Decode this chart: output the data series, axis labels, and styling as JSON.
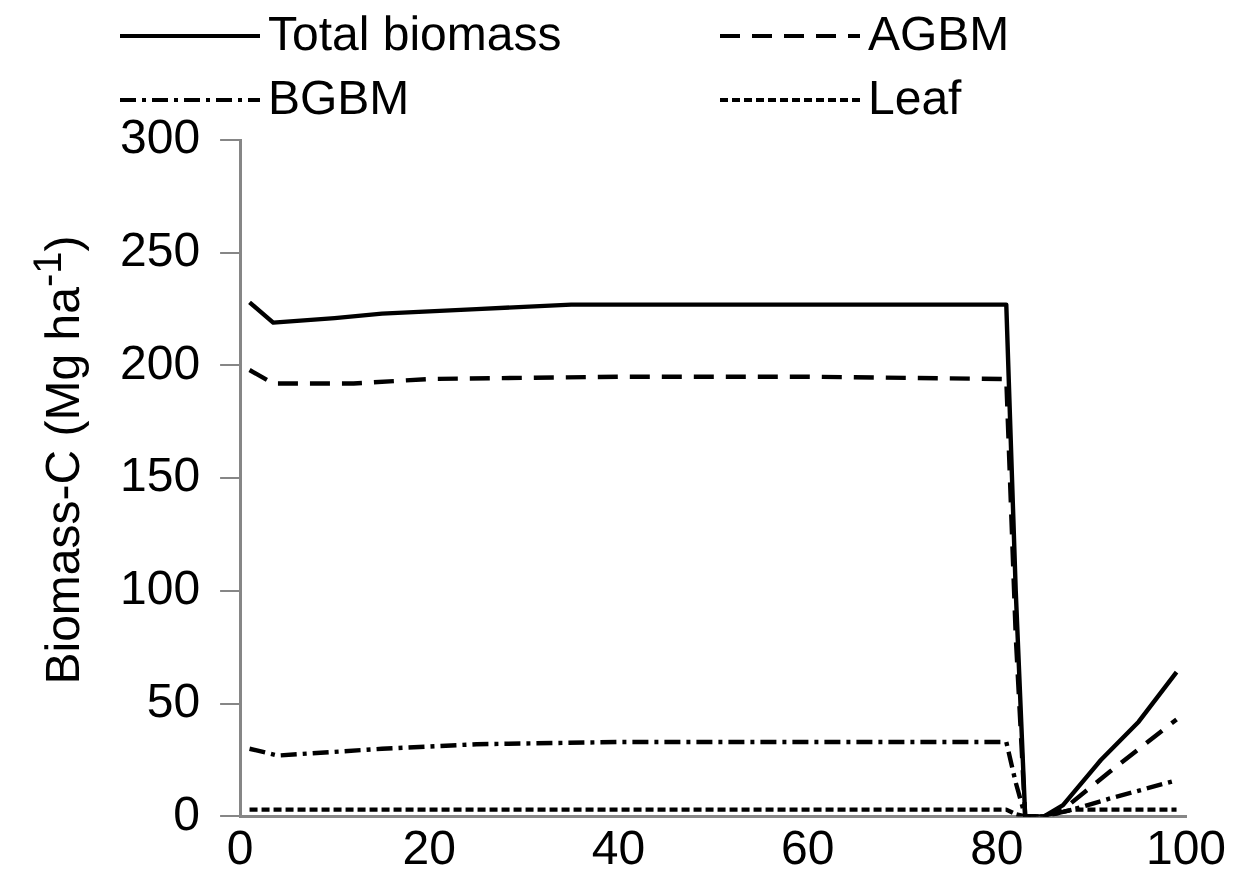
{
  "chart_data": {
    "type": "line",
    "ylabel": "Biomass-C (Mg ha$^{-1}$)",
    "xlim": [
      0,
      100
    ],
    "xticks": [
      0,
      20,
      40,
      60,
      80,
      100
    ],
    "ylim": [
      0,
      300
    ],
    "yticks": [
      0,
      50,
      100,
      150,
      200,
      250,
      300
    ],
    "grid": false,
    "legend": "top",
    "marker": "none",
    "series": [
      {
        "name": "Total biomass",
        "color": "#000000",
        "line_style": "solid",
        "x": [
          1,
          3.5,
          10,
          15,
          25,
          35,
          50,
          65,
          81,
          82,
          83,
          85,
          87,
          91,
          95,
          99
        ],
        "values": [
          228,
          219,
          221,
          223,
          225,
          227,
          227,
          227,
          227,
          100,
          0,
          0,
          5,
          25,
          42,
          64
        ]
      },
      {
        "name": "AGBM",
        "color": "#000000",
        "line_style": "dashed",
        "x": [
          1,
          3.5,
          12,
          20,
          40,
          60,
          81,
          82,
          83,
          85,
          87,
          92,
          99
        ],
        "values": [
          198,
          192,
          192,
          194,
          195,
          195,
          194,
          80,
          0,
          0,
          3,
          20,
          43
        ]
      },
      {
        "name": "BGBM",
        "color": "#000000",
        "line_style": "dashdot",
        "x": [
          1,
          4,
          15,
          25,
          40,
          60,
          81,
          82,
          83,
          85,
          88,
          92,
          99
        ],
        "values": [
          30,
          27,
          30,
          32,
          33,
          33,
          33,
          15,
          0,
          0,
          3,
          8,
          16
        ]
      },
      {
        "name": "Leaf",
        "color": "#000000",
        "line_style": "dotted",
        "x": [
          1,
          20,
          40,
          60,
          81,
          82,
          83,
          85,
          88,
          99
        ],
        "values": [
          3,
          3,
          3,
          3,
          3,
          1,
          0,
          0,
          3,
          3
        ]
      }
    ]
  }
}
